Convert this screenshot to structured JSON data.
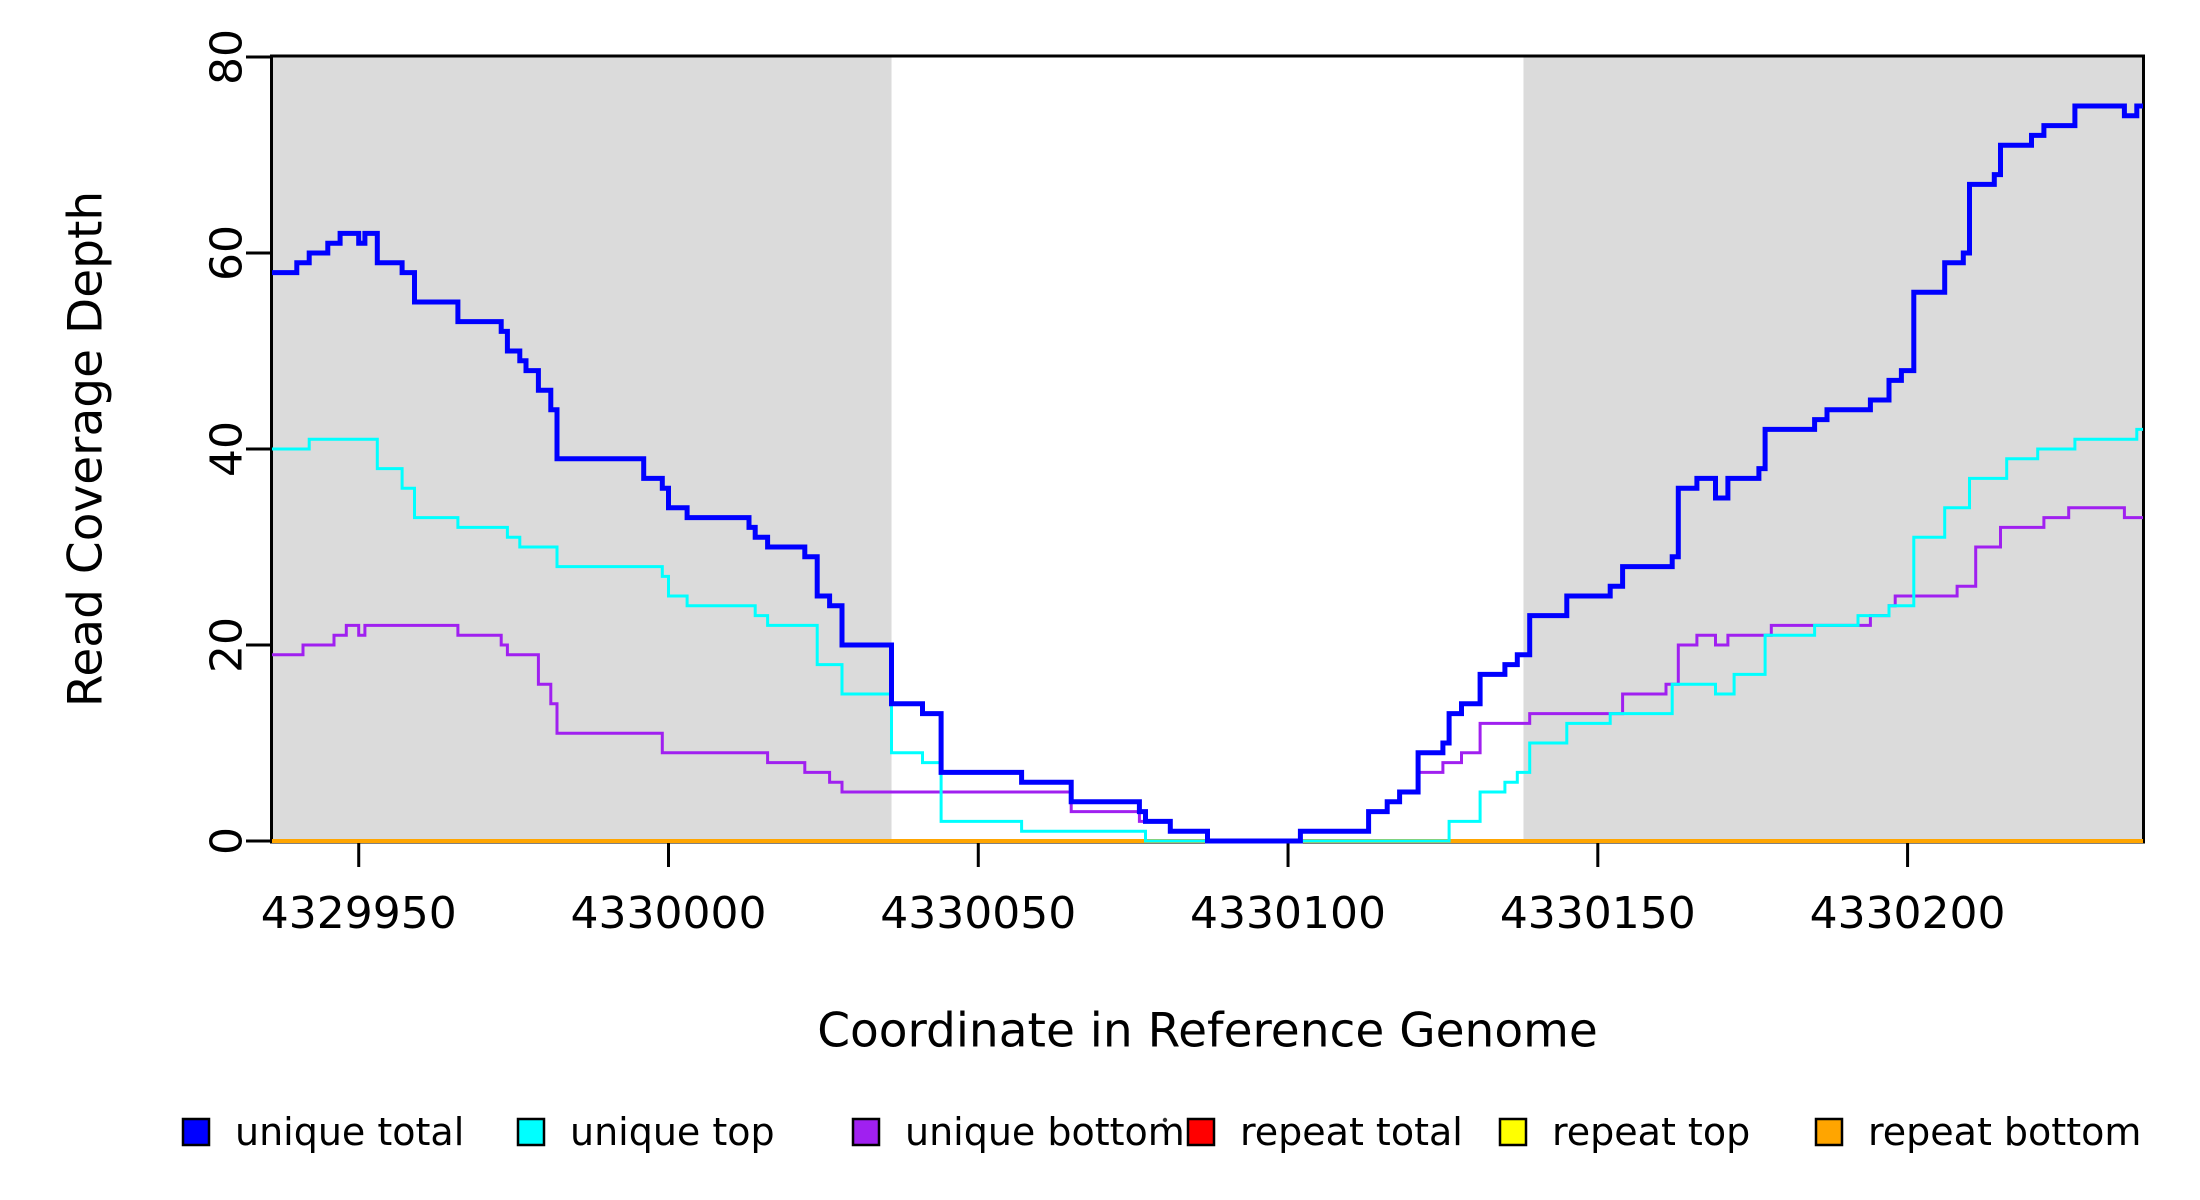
{
  "chart_data": {
    "type": "line",
    "subtype": "step-post",
    "title": "",
    "xlabel": "Coordinate in Reference Genome",
    "ylabel": "Read Coverage Depth",
    "xlim": [
      4329936,
      4330238
    ],
    "ylim": [
      0,
      80
    ],
    "xticks": [
      4329950,
      4330000,
      4330050,
      4330100,
      4330150,
      4330200
    ],
    "xticklabels": [
      "4329950",
      "4330000",
      "4330050",
      "4330100",
      "4330150",
      "4330200"
    ],
    "yticks": [
      0,
      20,
      40,
      60,
      80
    ],
    "yticklabels": [
      "0",
      "20",
      "40",
      "60",
      "80"
    ],
    "grid": false,
    "legend_position": "bottom",
    "shade_color": "#DBDBDB",
    "shaded_regions": [
      [
        4329936,
        4330036
      ],
      [
        4330138,
        4330238
      ]
    ],
    "series": [
      {
        "name": "unique total",
        "color": "#0000FF",
        "line_width": 5,
        "steps": [
          [
            4329936,
            58
          ],
          [
            4329940,
            59
          ],
          [
            4329942,
            60
          ],
          [
            4329945,
            61
          ],
          [
            4329947,
            62
          ],
          [
            4329950,
            61
          ],
          [
            4329951,
            62
          ],
          [
            4329953,
            59
          ],
          [
            4329957,
            58
          ],
          [
            4329959,
            55
          ],
          [
            4329966,
            53
          ],
          [
            4329973,
            52
          ],
          [
            4329974,
            50
          ],
          [
            4329976,
            49
          ],
          [
            4329977,
            48
          ],
          [
            4329979,
            46
          ],
          [
            4329981,
            44
          ],
          [
            4329982,
            39
          ],
          [
            4329996,
            37
          ],
          [
            4329999,
            36
          ],
          [
            4330000,
            34
          ],
          [
            4330003,
            33
          ],
          [
            4330013,
            32
          ],
          [
            4330014,
            31
          ],
          [
            4330016,
            30
          ],
          [
            4330022,
            29
          ],
          [
            4330024,
            25
          ],
          [
            4330026,
            24
          ],
          [
            4330028,
            20
          ],
          [
            4330036,
            14
          ],
          [
            4330041,
            13
          ],
          [
            4330044,
            7
          ],
          [
            4330057,
            6
          ],
          [
            4330065,
            4
          ],
          [
            4330076,
            3
          ],
          [
            4330077,
            2
          ],
          [
            4330081,
            1
          ],
          [
            4330087,
            0
          ],
          [
            4330102,
            1
          ],
          [
            4330113,
            3
          ],
          [
            4330116,
            4
          ],
          [
            4330118,
            5
          ],
          [
            4330121,
            9
          ],
          [
            4330125,
            10
          ],
          [
            4330126,
            13
          ],
          [
            4330128,
            14
          ],
          [
            4330131,
            17
          ],
          [
            4330135,
            18
          ],
          [
            4330137,
            19
          ],
          [
            4330139,
            23
          ],
          [
            4330145,
            25
          ],
          [
            4330152,
            26
          ],
          [
            4330154,
            28
          ],
          [
            4330162,
            29
          ],
          [
            4330163,
            36
          ],
          [
            4330166,
            37
          ],
          [
            4330169,
            35
          ],
          [
            4330171,
            37
          ],
          [
            4330176,
            38
          ],
          [
            4330177,
            42
          ],
          [
            4330185,
            43
          ],
          [
            4330187,
            44
          ],
          [
            4330194,
            45
          ],
          [
            4330197,
            47
          ],
          [
            4330199,
            48
          ],
          [
            4330201,
            56
          ],
          [
            4330206,
            59
          ],
          [
            4330209,
            60
          ],
          [
            4330210,
            67
          ],
          [
            4330214,
            68
          ],
          [
            4330215,
            71
          ],
          [
            4330220,
            72
          ],
          [
            4330222,
            73
          ],
          [
            4330227,
            75
          ],
          [
            4330235,
            74
          ],
          [
            4330237,
            75
          ]
        ]
      },
      {
        "name": "unique top",
        "color": "#00FFFF",
        "line_width": 3,
        "steps": [
          [
            4329936,
            40
          ],
          [
            4329942,
            41
          ],
          [
            4329953,
            38
          ],
          [
            4329957,
            36
          ],
          [
            4329959,
            33
          ],
          [
            4329966,
            32
          ],
          [
            4329974,
            31
          ],
          [
            4329976,
            30
          ],
          [
            4329982,
            28
          ],
          [
            4329999,
            27
          ],
          [
            4330000,
            25
          ],
          [
            4330003,
            24
          ],
          [
            4330014,
            23
          ],
          [
            4330016,
            22
          ],
          [
            4330024,
            18
          ],
          [
            4330028,
            15
          ],
          [
            4330036,
            9
          ],
          [
            4330041,
            8
          ],
          [
            4330044,
            2
          ],
          [
            4330057,
            1
          ],
          [
            4330077,
            0
          ],
          [
            4330126,
            2
          ],
          [
            4330131,
            5
          ],
          [
            4330135,
            6
          ],
          [
            4330137,
            7
          ],
          [
            4330139,
            10
          ],
          [
            4330145,
            12
          ],
          [
            4330152,
            13
          ],
          [
            4330162,
            16
          ],
          [
            4330169,
            15
          ],
          [
            4330172,
            17
          ],
          [
            4330177,
            21
          ],
          [
            4330185,
            22
          ],
          [
            4330192,
            23
          ],
          [
            4330197,
            24
          ],
          [
            4330201,
            31
          ],
          [
            4330206,
            34
          ],
          [
            4330210,
            37
          ],
          [
            4330216,
            39
          ],
          [
            4330221,
            40
          ],
          [
            4330227,
            41
          ],
          [
            4330237,
            42
          ]
        ]
      },
      {
        "name": "unique bottom",
        "color": "#A020F0",
        "line_width": 3,
        "steps": [
          [
            4329936,
            19
          ],
          [
            4329941,
            20
          ],
          [
            4329946,
            21
          ],
          [
            4329948,
            22
          ],
          [
            4329950,
            21
          ],
          [
            4329951,
            22
          ],
          [
            4329966,
            21
          ],
          [
            4329973,
            20
          ],
          [
            4329974,
            19
          ],
          [
            4329979,
            16
          ],
          [
            4329981,
            14
          ],
          [
            4329982,
            11
          ],
          [
            4329999,
            9
          ],
          [
            4330016,
            8
          ],
          [
            4330022,
            7
          ],
          [
            4330026,
            6
          ],
          [
            4330028,
            5
          ],
          [
            4330065,
            3
          ],
          [
            4330076,
            2
          ],
          [
            4330081,
            1
          ],
          [
            4330087,
            0
          ],
          [
            4330102,
            1
          ],
          [
            4330113,
            3
          ],
          [
            4330116,
            4
          ],
          [
            4330118,
            5
          ],
          [
            4330121,
            7
          ],
          [
            4330125,
            8
          ],
          [
            4330128,
            9
          ],
          [
            4330131,
            12
          ],
          [
            4330139,
            13
          ],
          [
            4330154,
            15
          ],
          [
            4330161,
            16
          ],
          [
            4330163,
            20
          ],
          [
            4330166,
            21
          ],
          [
            4330169,
            20
          ],
          [
            4330171,
            21
          ],
          [
            4330178,
            22
          ],
          [
            4330194,
            23
          ],
          [
            4330197,
            24
          ],
          [
            4330198,
            25
          ],
          [
            4330208,
            26
          ],
          [
            4330211,
            30
          ],
          [
            4330215,
            32
          ],
          [
            4330222,
            33
          ],
          [
            4330226,
            34
          ],
          [
            4330235,
            33
          ]
        ]
      },
      {
        "name": "repeat total",
        "color": "#FF0000",
        "line_width": 3,
        "steps": [
          [
            4329936,
            0
          ]
        ]
      },
      {
        "name": "repeat top",
        "color": "#FFFF00",
        "line_width": 3,
        "steps": [
          [
            4329936,
            0
          ]
        ]
      },
      {
        "name": "repeat bottom",
        "color": "#FFA500",
        "line_width": 4,
        "steps": [
          [
            4329936,
            0
          ]
        ]
      }
    ],
    "draw_order": [
      "repeat total",
      "repeat top",
      "repeat bottom",
      "unique bottom",
      "unique top",
      "unique total"
    ]
  }
}
